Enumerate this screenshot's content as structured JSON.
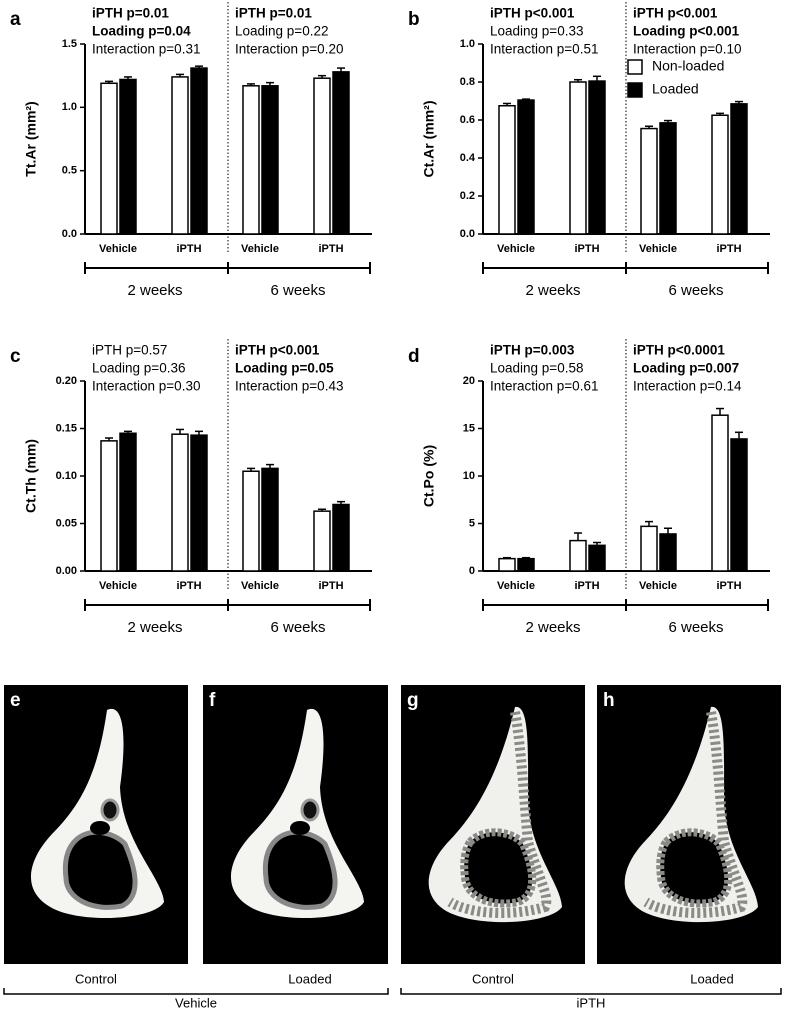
{
  "chart_data": [
    {
      "type": "bar",
      "panel": "a",
      "ylabel": "Tt.Ar (mm²)",
      "categories": [
        "Vehicle",
        "iPTH",
        "Vehicle",
        "iPTH"
      ],
      "groups": [
        "2 weeks",
        "6 weeks"
      ],
      "series": [
        {
          "color": "#ffffff",
          "values": [
            1.19,
            1.24,
            1.17,
            1.23
          ],
          "errors": [
            0.015,
            0.02,
            0.015,
            0.02
          ]
        },
        {
          "color": "#000000",
          "values": [
            1.22,
            1.31,
            1.17,
            1.28
          ],
          "errors": [
            0.02,
            0.015,
            0.025,
            0.03
          ]
        }
      ],
      "ylim": [
        0,
        1.5
      ],
      "yticks": [
        {
          "value": 0,
          "label": "0.0"
        },
        0.5,
        {
          "value": 1,
          "label": "1.0"
        },
        1.5
      ],
      "stats": [
        [
          {
            "text": "iPTH p=0.01",
            "bold": true
          },
          {
            "text": "Loading p=0.04",
            "bold": true
          },
          {
            "text": "Interaction p=0.31",
            "bold": false
          }
        ],
        [
          {
            "text": "iPTH p=0.01",
            "bold": true
          },
          {
            "text": "Loading p=0.22",
            "bold": false
          },
          {
            "text": "Interaction p=0.20",
            "bold": false
          }
        ]
      ]
    },
    {
      "type": "bar",
      "panel": "b",
      "ylabel": "Ct.Ar (mm²)",
      "categories": [
        "Vehicle",
        "iPTH",
        "Vehicle",
        "iPTH"
      ],
      "groups": [
        "2 weeks",
        "6 weeks"
      ],
      "series": [
        {
          "name": "Non-loaded",
          "color": "#ffffff",
          "values": [
            0.675,
            0.8,
            0.555,
            0.625
          ],
          "errors": [
            0.012,
            0.012,
            0.012,
            0.01
          ]
        },
        {
          "name": "Loaded",
          "color": "#000000",
          "values": [
            0.705,
            0.805,
            0.585,
            0.685
          ],
          "errors": [
            0.005,
            0.025,
            0.012,
            0.012
          ]
        }
      ],
      "legend": true,
      "ylim": [
        0,
        1
      ],
      "yticks": [
        {
          "value": 0,
          "label": "0.0"
        },
        0.2,
        0.4,
        0.6,
        0.8,
        {
          "value": 1,
          "label": "1.0"
        }
      ],
      "stats": [
        [
          {
            "text": "iPTH p<0.001",
            "bold": true
          },
          {
            "text": "Loading p=0.33",
            "bold": false
          },
          {
            "text": "Interaction p=0.51",
            "bold": false
          }
        ],
        [
          {
            "text": "iPTH p<0.001",
            "bold": true
          },
          {
            "text": "Loading p<0.001",
            "bold": true
          },
          {
            "text": "Interaction p=0.10",
            "bold": false
          }
        ]
      ]
    },
    {
      "type": "bar",
      "panel": "c",
      "ylabel": "Ct.Th (mm)",
      "categories": [
        "Vehicle",
        "iPTH",
        "Vehicle",
        "iPTH"
      ],
      "groups": [
        "2 weeks",
        "6 weeks"
      ],
      "series": [
        {
          "color": "#ffffff",
          "values": [
            0.137,
            0.144,
            0.105,
            0.063
          ],
          "errors": [
            0.003,
            0.005,
            0.003,
            0.002
          ]
        },
        {
          "color": "#000000",
          "values": [
            0.145,
            0.143,
            0.108,
            0.07
          ],
          "errors": [
            0.002,
            0.004,
            0.004,
            0.003
          ]
        }
      ],
      "ylim": [
        0,
        0.2
      ],
      "yticks": [
        {
          "value": 0,
          "label": "0.00"
        },
        0.05,
        {
          "value": 0.1,
          "label": "0.10"
        },
        0.15,
        {
          "value": 0.2,
          "label": "0.20"
        }
      ],
      "stats": [
        [
          {
            "text": "iPTH p=0.57",
            "bold": false
          },
          {
            "text": "Loading p=0.36",
            "bold": false
          },
          {
            "text": "Interaction p=0.30",
            "bold": false
          }
        ],
        [
          {
            "text": "iPTH p<0.001",
            "bold": true
          },
          {
            "text": "Loading p=0.05",
            "bold": true
          },
          {
            "text": "Interaction p=0.43",
            "bold": false
          }
        ]
      ]
    },
    {
      "type": "bar",
      "panel": "d",
      "ylabel": "Ct.Po (%)",
      "categories": [
        "Vehicle",
        "iPTH",
        "Vehicle",
        "iPTH"
      ],
      "groups": [
        "2 weeks",
        "6 weeks"
      ],
      "series": [
        {
          "color": "#ffffff",
          "values": [
            1.3,
            3.2,
            4.7,
            16.4
          ],
          "errors": [
            0.1,
            0.8,
            0.5,
            0.7
          ]
        },
        {
          "color": "#000000",
          "values": [
            1.3,
            2.7,
            3.9,
            13.9
          ],
          "errors": [
            0.1,
            0.3,
            0.6,
            0.7
          ]
        }
      ],
      "ylim": [
        0,
        20
      ],
      "yticks": [
        0,
        5,
        10,
        15,
        20
      ],
      "stats": [
        [
          {
            "text": "iPTH p=0.003",
            "bold": true
          },
          {
            "text": "Loading p=0.58",
            "bold": false
          },
          {
            "text": "Interaction p=0.61",
            "bold": false
          }
        ],
        [
          {
            "text": "iPTH p<0.0001",
            "bold": true
          },
          {
            "text": "Loading p=0.007",
            "bold": true
          },
          {
            "text": "Interaction p=0.14",
            "bold": false
          }
        ]
      ]
    }
  ],
  "micrographs": {
    "panels": [
      {
        "letter": "e",
        "caption": "Control"
      },
      {
        "letter": "f",
        "caption": "Loaded"
      },
      {
        "letter": "g",
        "caption": "Control"
      },
      {
        "letter": "h",
        "caption": "Loaded"
      }
    ],
    "groups": [
      "Vehicle",
      "iPTH"
    ]
  }
}
